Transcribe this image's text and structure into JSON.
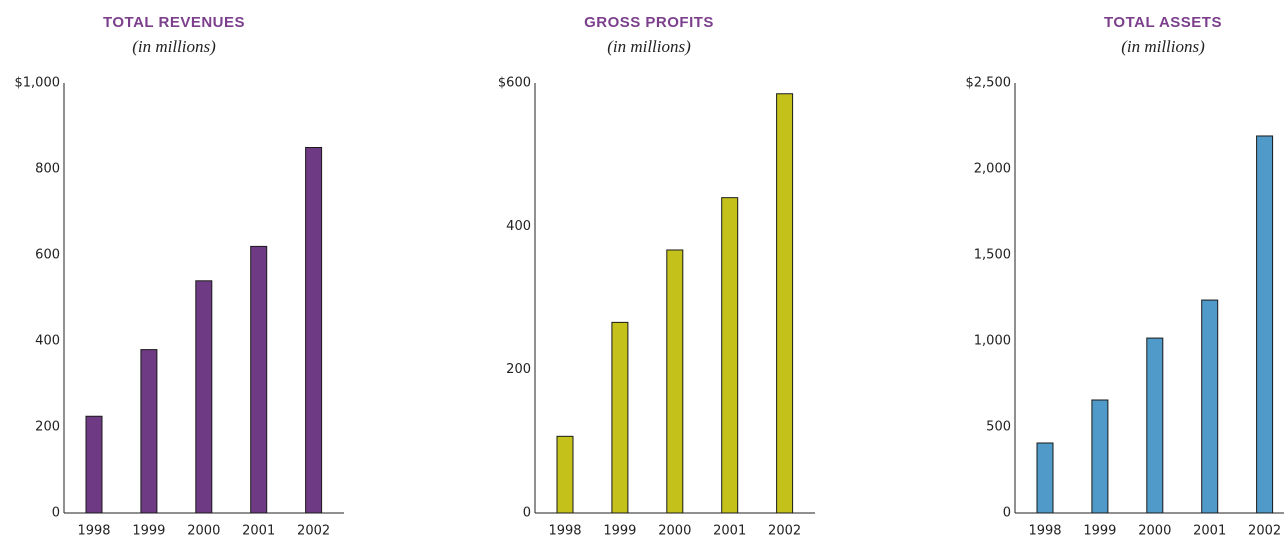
{
  "chart_data": [
    {
      "type": "bar",
      "title": "TOTAL REVENUES",
      "subtitle": "(in millions)",
      "categories": [
        "1998",
        "1999",
        "2000",
        "2001",
        "2002"
      ],
      "values": [
        225,
        380,
        540,
        620,
        850
      ],
      "color": "#6f3a84",
      "ylim": [
        0,
        1000
      ],
      "yticks": [
        0,
        200,
        400,
        600,
        800,
        {
          "value": 1000,
          "label": "$1,000"
        }
      ]
    },
    {
      "type": "bar",
      "title": "GROSS PROFITS",
      "subtitle": "(in millions)",
      "categories": [
        "1998",
        "1999",
        "2000",
        "2001",
        "2002"
      ],
      "values": [
        107,
        266,
        367,
        440,
        585
      ],
      "color": "#c4c21a",
      "ylim": [
        0,
        600
      ],
      "yticks": [
        0,
        200,
        400,
        {
          "value": 600,
          "label": "$600"
        }
      ]
    },
    {
      "type": "bar",
      "title": "TOTAL ASSETS",
      "subtitle": "(in millions)",
      "categories": [
        "1998",
        "1999",
        "2000",
        "2001",
        "2002"
      ],
      "values": [
        407,
        657,
        1017,
        1238,
        2192
      ],
      "color": "#4f9ac8",
      "ylim": [
        0,
        2500
      ],
      "yticks": [
        0,
        500,
        {
          "value": 1000,
          "label": "1,000"
        },
        {
          "value": 1500,
          "label": "1,500"
        },
        {
          "value": 2000,
          "label": "2,000"
        },
        {
          "value": 2500,
          "label": "$2,500"
        }
      ]
    }
  ]
}
